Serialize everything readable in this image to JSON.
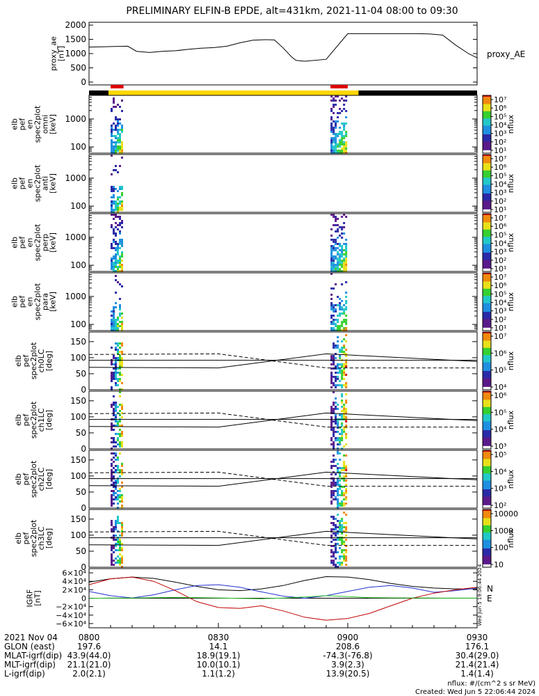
{
  "title": "PRELIMINARY ELFIN-B EPDE, alt=431km, 2021-11-04 08:00 to 09:30",
  "watermark_text": "Wed Jun  5 19:06:44 2024",
  "colors": {
    "ae": "#000000",
    "science_bar": "#ffd800",
    "sci_zone": "#e00000",
    "igrf_x": "#000000",
    "igrf_y": "#1f2fd0",
    "igrf_z": "#c00000",
    "igrf_e": "#22c022"
  },
  "chart_data": [
    {
      "type": "line",
      "id": "proxy_ae",
      "ylabel": [
        "proxy_ae",
        "[nT]"
      ],
      "legend": "proxy_AE",
      "yticks": [
        "2000",
        "1500",
        "1000",
        "500",
        "0"
      ],
      "ylim": [
        -100,
        2100
      ],
      "x": [
        0,
        3,
        6,
        9,
        11,
        14,
        17,
        20,
        23,
        26,
        29,
        32,
        35,
        38,
        41,
        43,
        45,
        47,
        48,
        50,
        55,
        60,
        64,
        67,
        70,
        73,
        76,
        79,
        82,
        85,
        88,
        90
      ],
      "y": [
        1230,
        1240,
        1250,
        1260,
        1080,
        1040,
        1080,
        1100,
        1150,
        1190,
        1210,
        1260,
        1380,
        1470,
        1490,
        1480,
        1200,
        880,
        760,
        730,
        800,
        1700,
        1700,
        1700,
        1700,
        1700,
        1700,
        1690,
        1650,
        1300,
        1000,
        850
      ]
    },
    {
      "type": "status_bar",
      "id": "science_bars",
      "segments_minutes": [
        [
          4.5,
          62.5
        ]
      ],
      "red_segments_minutes": [
        [
          5.0,
          8.0
        ],
        [
          56.0,
          60.0
        ]
      ]
    },
    {
      "type": "heatmap",
      "id": "en_omni",
      "ylabel": [
        "elb",
        "pef",
        "en",
        "spec2plot",
        "omni",
        "[keV]"
      ],
      "ylim_keV": [
        60,
        7000
      ],
      "yscale": "log",
      "yticks": [
        "1000",
        "100"
      ],
      "active_minutes": [
        [
          5.0,
          8.0
        ],
        [
          56.0,
          60.0
        ]
      ],
      "colorbar": {
        "label": "nflux",
        "ticks": [
          "10⁷",
          "10⁶",
          "10⁵",
          "10⁴",
          "10³",
          "10²",
          "10¹"
        ]
      }
    },
    {
      "type": "heatmap",
      "id": "en_anti",
      "ylabel": [
        "elb",
        "pef",
        "en",
        "spec2plot",
        "anti",
        "[keV]"
      ],
      "ylim_keV": [
        60,
        7000
      ],
      "yscale": "log",
      "yticks": [
        "1000",
        "100"
      ],
      "active_minutes": [
        [
          5.0,
          8.0
        ]
      ],
      "colorbar": {
        "label": "nflux",
        "ticks": [
          "10⁷",
          "10⁶",
          "10⁵",
          "10⁴",
          "10³",
          "10²",
          "10¹"
        ]
      }
    },
    {
      "type": "heatmap",
      "id": "en_perp",
      "ylabel": [
        "elb",
        "pef",
        "en",
        "spec2plot",
        "perp",
        "[keV]"
      ],
      "ylim_keV": [
        60,
        7000
      ],
      "yscale": "log",
      "yticks": [
        "1000",
        "100"
      ],
      "active_minutes": [
        [
          5.0,
          8.0
        ],
        [
          56.0,
          60.0
        ]
      ],
      "colorbar": {
        "label": "nflux",
        "ticks": [
          "10⁷",
          "10⁶",
          "10⁵",
          "10⁴",
          "10³",
          "10²",
          "10¹"
        ]
      }
    },
    {
      "type": "heatmap",
      "id": "en_para",
      "ylabel": [
        "elb",
        "pef",
        "en",
        "spec2plot",
        "para",
        "[keV]"
      ],
      "ylim_keV": [
        60,
        7000
      ],
      "yscale": "log",
      "yticks": [
        "1000",
        "100"
      ],
      "active_minutes": [
        [
          5.0,
          8.0
        ],
        [
          56.0,
          60.0
        ]
      ],
      "colorbar": {
        "label": "nflux",
        "ticks": [
          "10⁷",
          "10⁶",
          "10⁵",
          "10⁴",
          "10³",
          "10²",
          "10¹"
        ]
      }
    },
    {
      "type": "heatmap",
      "id": "pa_ch0",
      "ylabel": [
        "elb",
        "pef",
        "spec2plot",
        "ch0LC",
        "[deg]"
      ],
      "ylim_deg": [
        0,
        180
      ],
      "yticks": [
        "150",
        "100",
        "50",
        "0"
      ],
      "active_minutes": [
        [
          5.0,
          8.0
        ],
        [
          56.0,
          60.0
        ]
      ],
      "colorbar": {
        "label": "nflux",
        "ticks": [
          "10⁷",
          "10⁶",
          "10⁵",
          "10⁴"
        ]
      }
    },
    {
      "type": "heatmap",
      "id": "pa_ch1",
      "ylabel": [
        "elb",
        "pef",
        "spec2plot",
        "ch1LC",
        "[deg]"
      ],
      "ylim_deg": [
        0,
        180
      ],
      "yticks": [
        "150",
        "100",
        "50",
        "0"
      ],
      "active_minutes": [
        [
          5.0,
          8.0
        ],
        [
          56.0,
          60.0
        ]
      ],
      "colorbar": {
        "label": "nflux",
        "ticks": [
          "10⁶",
          "10⁵",
          "10⁴",
          "10³"
        ]
      }
    },
    {
      "type": "heatmap",
      "id": "pa_ch2",
      "ylabel": [
        "elb",
        "pef",
        "spec2plot",
        "ch2LC",
        "[deg]"
      ],
      "ylim_deg": [
        0,
        180
      ],
      "yticks": [
        "150",
        "100",
        "50",
        "0"
      ],
      "active_minutes": [
        [
          5.0,
          8.0
        ],
        [
          56.0,
          60.0
        ]
      ],
      "colorbar": {
        "label": "nflux",
        "ticks": [
          "10⁵",
          "10⁴",
          "10³",
          "10²"
        ]
      }
    },
    {
      "type": "heatmap",
      "id": "pa_ch3",
      "ylabel": [
        "elb",
        "pef",
        "spec2plot",
        "ch3LC",
        "[deg]"
      ],
      "ylim_deg": [
        0,
        180
      ],
      "yticks": [
        "150",
        "100",
        "50",
        "0"
      ],
      "active_minutes": [
        [
          5.0,
          8.0
        ],
        [
          56.0,
          60.0
        ]
      ],
      "colorbar": {
        "label": "nflux",
        "ticks": [
          "10000",
          "1000",
          "100",
          "10"
        ]
      }
    },
    {
      "type": "line",
      "id": "igrf",
      "ylabel": [
        "IGRF",
        "[nT]"
      ],
      "yticks": [
        "6×10⁴",
        "4×10⁴",
        "2×10⁴",
        "0",
        "−2×10⁴",
        "−4×10⁴",
        "−6×10⁴"
      ],
      "ylim": [
        -70000,
        70000
      ],
      "legend": [
        "N",
        "E"
      ],
      "series": [
        {
          "key": "x",
          "x": [
            0,
            5,
            10,
            15,
            20,
            25,
            30,
            35,
            40,
            45,
            50,
            55,
            60,
            65,
            70,
            75,
            80,
            85,
            90
          ],
          "values": [
            38000,
            46000,
            50000,
            47000,
            38000,
            28000,
            20000,
            18000,
            22000,
            30000,
            42000,
            51000,
            50000,
            44000,
            35000,
            28000,
            24000,
            22000,
            22000
          ]
        },
        {
          "key": "y",
          "x": [
            0,
            5,
            10,
            15,
            20,
            25,
            30,
            35,
            40,
            45,
            50,
            55,
            60,
            65,
            70,
            75,
            80,
            85,
            90
          ],
          "values": [
            16000,
            6000,
            600,
            8000,
            20000,
            30000,
            32000,
            26000,
            15000,
            5000,
            0,
            6000,
            16000,
            26000,
            30000,
            24000,
            14000,
            18000,
            24000
          ]
        },
        {
          "key": "z",
          "x": [
            0,
            5,
            10,
            15,
            20,
            25,
            30,
            35,
            40,
            45,
            50,
            55,
            60,
            65,
            70,
            75,
            80,
            85,
            90
          ],
          "values": [
            32000,
            46000,
            50000,
            40000,
            18000,
            -8000,
            -22000,
            -24000,
            -18000,
            -30000,
            -45000,
            -52000,
            -48000,
            -36000,
            -18000,
            0,
            12000,
            20000,
            26000
          ]
        },
        {
          "key": "e",
          "x": [
            0,
            5,
            10,
            15,
            20,
            25,
            30,
            35,
            40,
            45,
            50,
            55,
            60,
            65,
            70,
            75,
            80,
            85,
            90
          ],
          "values": [
            -500,
            300,
            400,
            1200,
            1800,
            1200,
            600,
            -500,
            -1200,
            500,
            3000,
            6000,
            4000,
            1500,
            800,
            600,
            400,
            200,
            200
          ]
        }
      ]
    }
  ],
  "footer": {
    "rows": [
      {
        "label": "2021 Nov 04",
        "values": [
          "0800",
          "0830",
          "0900",
          "0930"
        ]
      },
      {
        "label": "GLON (east)",
        "values": [
          "197.6",
          "14.1",
          "208.6",
          "176.1"
        ]
      },
      {
        "label": "MLAT-igrf(dip)",
        "values": [
          "43.9(44.0)",
          "18.9(19.1)",
          "-74.3(-76.8)",
          "30.4(29.0)"
        ]
      },
      {
        "label": "MLT-igrf(dip)",
        "values": [
          "21.1(21.0)",
          "10.0(10.1)",
          "3.9(2.3)",
          "21.4(21.4)"
        ]
      },
      {
        "label": "L-igrf(dip)",
        "values": [
          "2.0(2.1)",
          "1.1(1.2)",
          "13.9(20.5)",
          "1.4(1.4)"
        ]
      }
    ],
    "units_note": "nflux: #/(cm^2 s sr MeV)",
    "created": "Created: Wed Jun  5 22:06:44 2024"
  }
}
